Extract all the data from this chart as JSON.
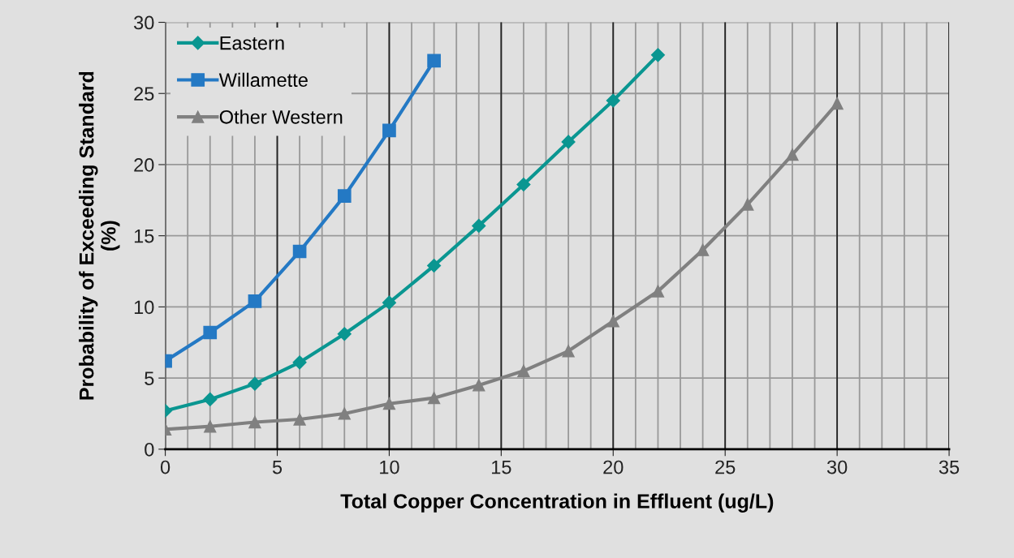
{
  "chart_data": {
    "type": "line",
    "xlabel": "Total Copper Concentration in Effluent (ug/L)",
    "ylabel": "Probability of Exceeding Standard\n(%)",
    "xlim": [
      0,
      35
    ],
    "xticks": [
      0,
      5,
      10,
      15,
      20,
      25,
      30,
      35
    ],
    "ylim": [
      0,
      30
    ],
    "yticks": [
      0,
      5,
      10,
      15,
      20,
      25,
      30
    ],
    "grid": true,
    "legend": "top left",
    "series": [
      {
        "name": "Eastern",
        "color": "#0a9691",
        "marker": "diamond",
        "x": [
          0,
          2,
          4,
          6,
          8,
          10,
          12,
          14,
          16,
          18,
          20,
          22
        ],
        "values": [
          2.7,
          3.5,
          4.6,
          6.1,
          8.1,
          10.3,
          12.9,
          15.7,
          18.6,
          21.6,
          24.5,
          27.7
        ]
      },
      {
        "name": "Willamette",
        "color": "#2479c4",
        "marker": "square",
        "x": [
          0,
          2,
          4,
          6,
          8,
          10,
          12
        ],
        "values": [
          6.2,
          8.2,
          10.4,
          13.9,
          17.8,
          22.4,
          27.3
        ]
      },
      {
        "name": "Other Western",
        "color": "#808080",
        "marker": "triangle",
        "x": [
          0,
          2,
          4,
          6,
          8,
          10,
          12,
          14,
          16,
          18,
          20,
          22,
          24,
          26,
          28,
          30
        ],
        "values": [
          1.4,
          1.6,
          1.9,
          2.1,
          2.5,
          3.2,
          3.6,
          4.5,
          5.5,
          6.9,
          9.0,
          11.1,
          14.0,
          17.2,
          20.7,
          24.3
        ]
      }
    ]
  }
}
